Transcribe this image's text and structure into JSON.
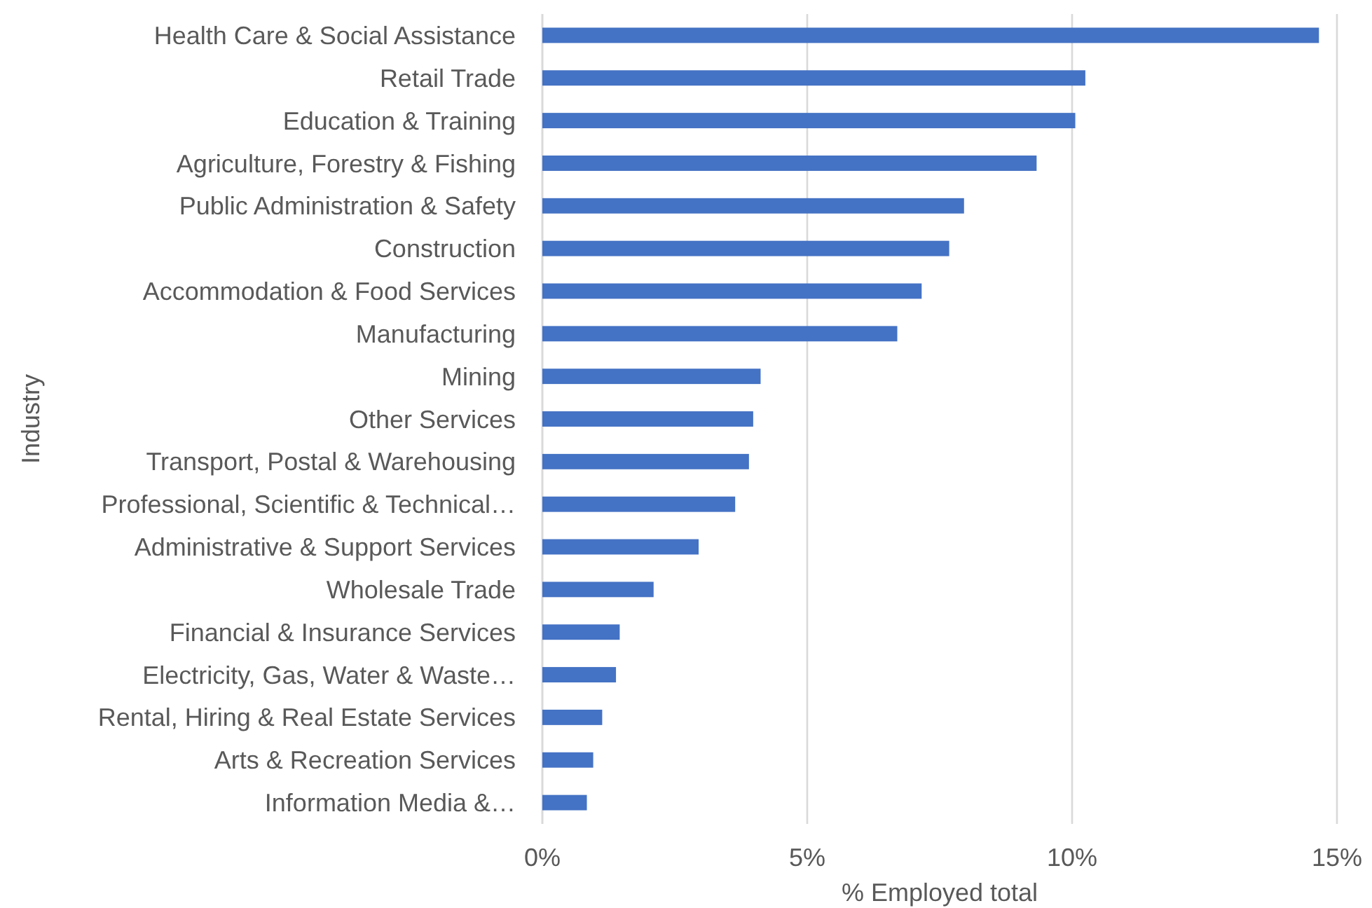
{
  "chart_data": {
    "type": "bar",
    "orientation": "horizontal",
    "xlabel": "% Employed total",
    "ylabel": "Industry",
    "categories": [
      "Health Care & Social Assistance",
      "Retail Trade",
      "Education & Training",
      "Agriculture, Forestry & Fishing",
      "Public Administration & Safety",
      "Construction",
      "Accommodation & Food Services",
      "Manufacturing",
      "Mining",
      "Other Services",
      "Transport, Postal & Warehousing",
      "Professional, Scientific & Technical…",
      "Administrative & Support Services",
      "Wholesale Trade",
      "Financial & Insurance Services",
      "Electricity, Gas, Water & Waste…",
      "Rental, Hiring & Real Estate Services",
      "Arts & Recreation Services",
      "Information Media &…"
    ],
    "values": [
      14.66,
      10.25,
      10.06,
      9.33,
      7.96,
      7.68,
      7.16,
      6.7,
      4.12,
      3.98,
      3.9,
      3.64,
      2.95,
      2.1,
      1.46,
      1.39,
      1.13,
      0.96,
      0.84
    ],
    "color": "#4472c4",
    "xlim": [
      0,
      15
    ],
    "xticks": [
      {
        "value": 0,
        "label": "0%"
      },
      {
        "value": 5,
        "label": "5%"
      },
      {
        "value": 10,
        "label": "10%"
      },
      {
        "value": 15,
        "label": "15%"
      }
    ],
    "grid": "x"
  }
}
